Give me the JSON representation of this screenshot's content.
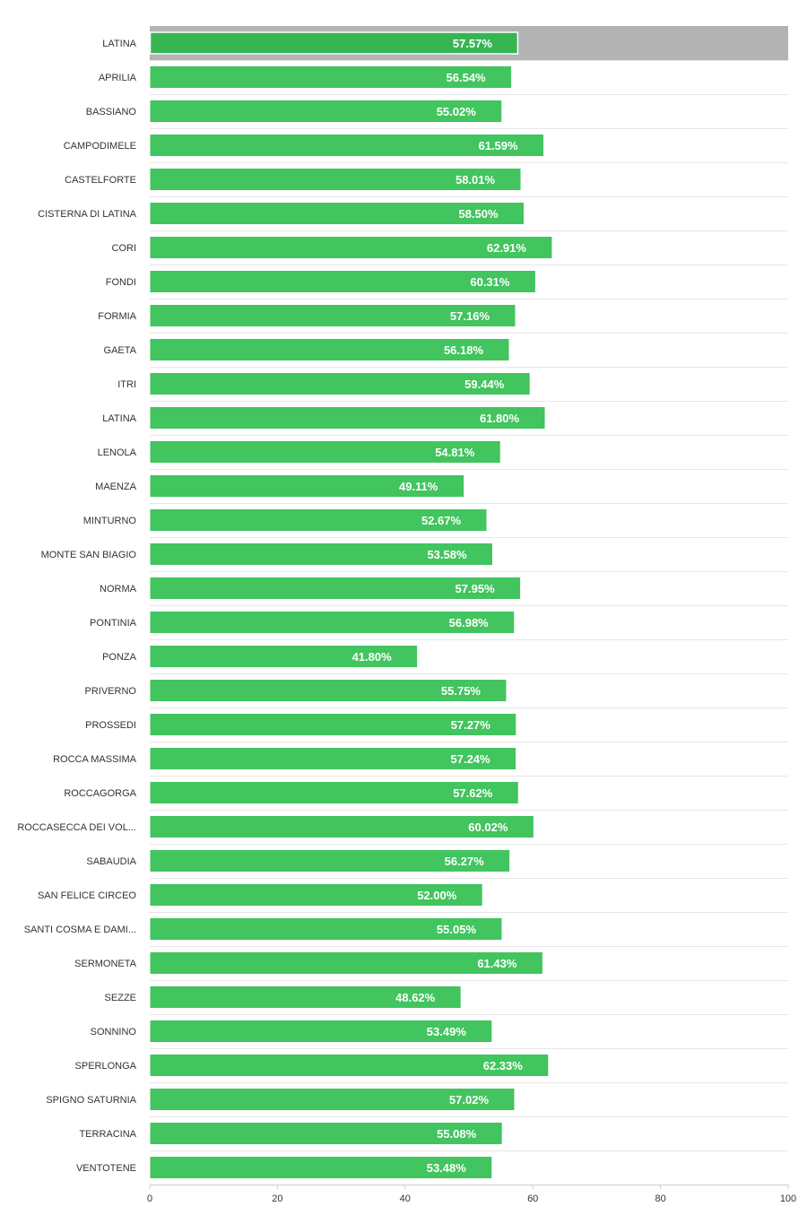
{
  "chart_data": {
    "type": "bar",
    "orientation": "horizontal",
    "categories": [
      "LATINA",
      "APRILIA",
      "BASSIANO",
      "CAMPODIMELE",
      "CASTELFORTE",
      "CISTERNA DI LATINA",
      "CORI",
      "FONDI",
      "FORMIA",
      "GAETA",
      "ITRI",
      "LATINA",
      "LENOLA",
      "MAENZA",
      "MINTURNO",
      "MONTE SAN BIAGIO",
      "NORMA",
      "PONTINIA",
      "PONZA",
      "PRIVERNO",
      "PROSSEDI",
      "ROCCA MASSIMA",
      "ROCCAGORGA",
      "ROCCASECCA DEI VOL...",
      "SABAUDIA",
      "SAN FELICE CIRCEO",
      "SANTI COSMA E DAMI...",
      "SERMONETA",
      "SEZZE",
      "SONNINO",
      "SPERLONGA",
      "SPIGNO SATURNIA",
      "TERRACINA",
      "VENTOTENE"
    ],
    "values": [
      57.57,
      56.54,
      55.02,
      61.59,
      58.01,
      58.5,
      62.91,
      60.31,
      57.16,
      56.18,
      59.44,
      61.8,
      54.81,
      49.11,
      52.67,
      53.58,
      57.95,
      56.98,
      41.8,
      55.75,
      57.27,
      57.24,
      57.62,
      60.02,
      56.27,
      52.0,
      55.05,
      61.43,
      48.62,
      53.49,
      62.33,
      57.02,
      55.08,
      53.48
    ],
    "value_labels": [
      "57.57%",
      "56.54%",
      "55.02%",
      "61.59%",
      "58.01%",
      "58.50%",
      "62.91%",
      "60.31%",
      "57.16%",
      "56.18%",
      "59.44%",
      "61.80%",
      "54.81%",
      "49.11%",
      "52.67%",
      "53.58%",
      "57.95%",
      "56.98%",
      "41.80%",
      "55.75%",
      "57.27%",
      "57.24%",
      "57.62%",
      "60.02%",
      "56.27%",
      "52.00%",
      "55.05%",
      "61.43%",
      "48.62%",
      "53.49%",
      "62.33%",
      "57.02%",
      "55.08%",
      "53.48%"
    ],
    "highlighted_index": 0,
    "xlim": [
      0,
      100
    ],
    "xticks": [
      0,
      20,
      40,
      60,
      80,
      100
    ],
    "title": "",
    "xlabel": "",
    "ylabel": "",
    "grid": false,
    "colors": {
      "bar": "#42c45e",
      "bar_highlight": "#36b552",
      "highlight_band": "#b3b3b3",
      "highlight_border": "#ffffff"
    }
  }
}
